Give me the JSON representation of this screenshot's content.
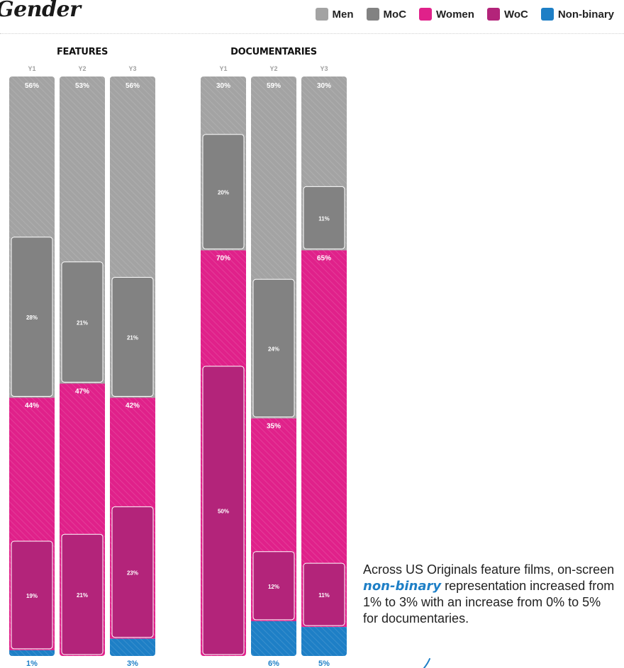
{
  "title": "Gender",
  "legend": [
    {
      "label": "Men",
      "color": "#a3a3a3"
    },
    {
      "label": "MoC",
      "color": "#828282"
    },
    {
      "label": "Women",
      "color": "#e0218a"
    },
    {
      "label": "WoC",
      "color": "#b3247a"
    },
    {
      "label": "Non-binary",
      "color": "#1e7fc6"
    }
  ],
  "annotation": {
    "part1": "Across US Originals feature films, on-screen ",
    "highlight": "non-binary",
    "part2": " representation increased from 1% to 3% with an increase from 0% to 5% for documentaries."
  },
  "chart_data": {
    "type": "bar",
    "stacked": true,
    "percent_scale": [
      0,
      100
    ],
    "groups": [
      {
        "name": "FEATURES",
        "categories": [
          "Y1",
          "Y2",
          "Y3"
        ],
        "series": [
          {
            "name": "Men",
            "values": [
              56,
              53,
              56
            ]
          },
          {
            "name": "Women",
            "values": [
              44,
              47,
              42
            ]
          },
          {
            "name": "Non-binary",
            "values": [
              1,
              0,
              3
            ]
          }
        ],
        "subsets": [
          {
            "name": "MoC",
            "of": "Men",
            "values": [
              28,
              21,
              21
            ]
          },
          {
            "name": "WoC",
            "of": "Women",
            "values": [
              19,
              21,
              23
            ]
          }
        ],
        "value_labels": {
          "Men": [
            "56%",
            "53%",
            "56%"
          ],
          "Women": [
            "44%",
            "47%",
            "42%"
          ],
          "Non-binary": [
            "1%",
            "",
            "3%"
          ],
          "MoC": [
            "28%",
            "21%",
            "21%"
          ],
          "WoC": [
            "19%",
            "21%",
            "23%"
          ]
        }
      },
      {
        "name": "DOCUMENTARIES",
        "categories": [
          "Y1",
          "Y2",
          "Y3"
        ],
        "series": [
          {
            "name": "Men",
            "values": [
              30,
              59,
              30
            ]
          },
          {
            "name": "Women",
            "values": [
              70,
              35,
              65
            ]
          },
          {
            "name": "Non-binary",
            "values": [
              0,
              6,
              5
            ]
          }
        ],
        "subsets": [
          {
            "name": "MoC",
            "of": "Men",
            "values": [
              20,
              24,
              11
            ]
          },
          {
            "name": "WoC",
            "of": "Women",
            "values": [
              50,
              12,
              11
            ]
          }
        ],
        "value_labels": {
          "Men": [
            "30%",
            "59%",
            "30%"
          ],
          "Women": [
            "70%",
            "35%",
            "65%"
          ],
          "Non-binary": [
            "",
            "6%",
            "5%"
          ],
          "MoC": [
            "20%",
            "24%",
            "11%"
          ],
          "WoC": [
            "50%",
            "12%",
            "11%"
          ]
        }
      }
    ]
  }
}
